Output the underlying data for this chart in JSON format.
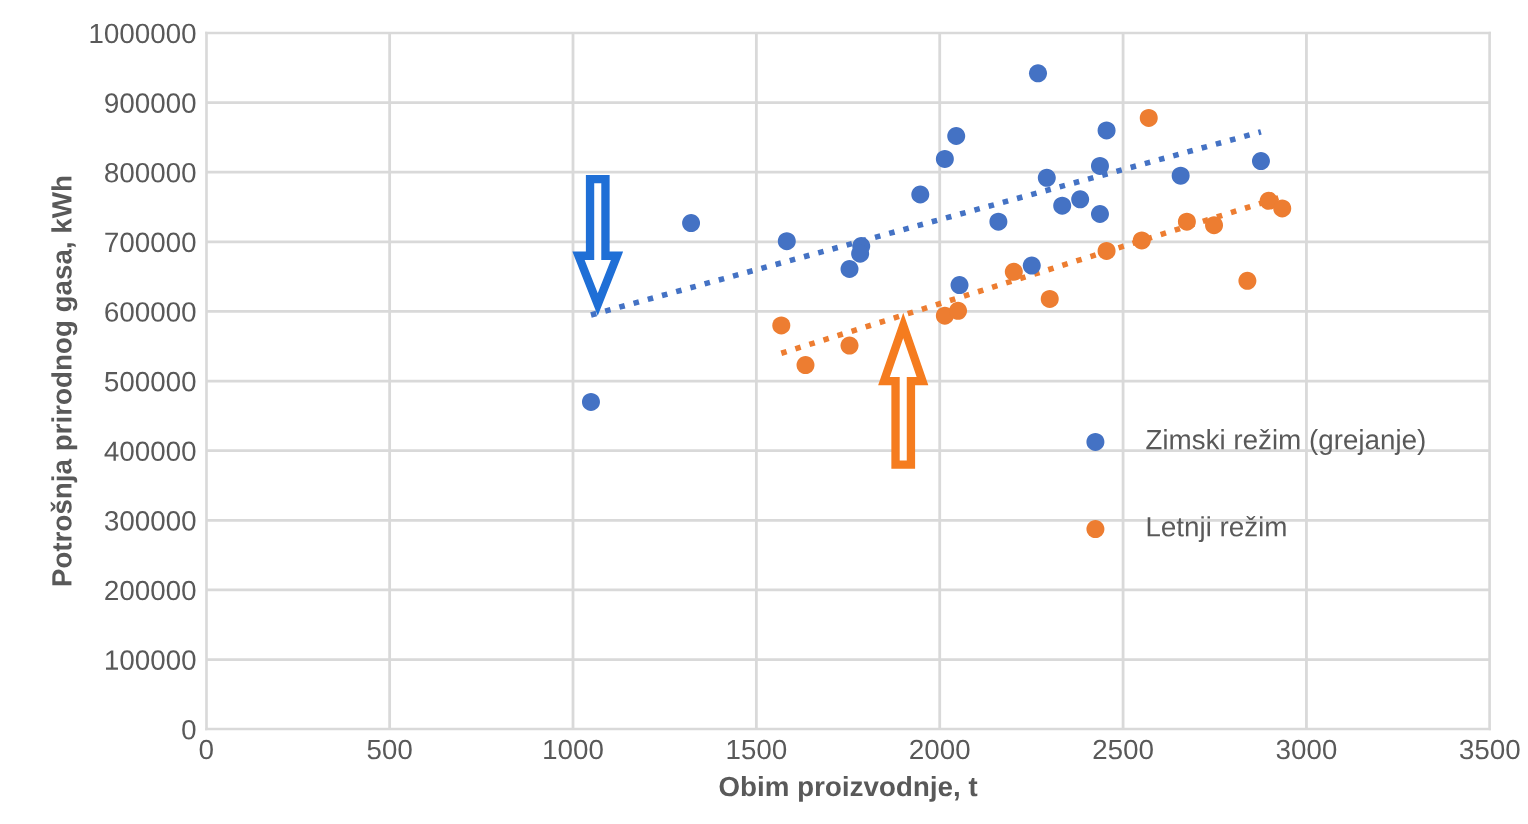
{
  "chart_data": {
    "type": "scatter",
    "xlabel": "Obim proizvodnje, t",
    "ylabel": "Potrošnja prirodnog gasa, kWh",
    "xlim": [
      0,
      3500
    ],
    "xticks": [
      0,
      500,
      1000,
      1500,
      2000,
      2500,
      3000,
      3500
    ],
    "ylim": [
      0,
      1000000
    ],
    "yticks": [
      0,
      100000,
      200000,
      300000,
      400000,
      500000,
      600000,
      700000,
      800000,
      900000,
      1000000
    ],
    "grid": true,
    "legend": "right",
    "marker": "circle",
    "series": [
      {
        "name": "Zimski režim (grejanje)",
        "color": "#4472c4",
        "x": [
          1049,
          1322,
          1583,
          1786,
          1783,
          1754,
          1947,
          2014,
          2045,
          2160,
          2054,
          2268,
          2292,
          2334,
          2383,
          2437,
          2455,
          2437,
          2251,
          2657,
          2876
        ],
        "values": [
          470000,
          727000,
          701000,
          694000,
          683000,
          661000,
          768000,
          819000,
          852000,
          729000,
          638000,
          942000,
          792000,
          752000,
          761000,
          809000,
          860000,
          740000,
          666000,
          795000,
          816000
        ]
      },
      {
        "name": "Letnji režim",
        "color": "#ed7d31",
        "x": [
          1568,
          1634,
          1754,
          2014,
          2050,
          2202,
          2300,
          2455,
          2551,
          2570,
          2674,
          2748,
          2839,
          2897,
          2934
        ],
        "values": [
          580000,
          523000,
          551000,
          594000,
          601000,
          657000,
          618000,
          687000,
          702000,
          878000,
          729000,
          724000,
          644000,
          759000,
          748000
        ]
      },
      {
        "type": "line",
        "marker": "none",
        "line_style": "dotted",
        "color": "#4472c4",
        "x": [
          1049,
          2876
        ],
        "values": [
          595000,
          858000
        ]
      },
      {
        "type": "line",
        "marker": "none",
        "line_style": "dotted",
        "color": "#ed7d31",
        "x": [
          1568,
          2934
        ],
        "values": [
          540000,
          765000
        ]
      }
    ]
  }
}
